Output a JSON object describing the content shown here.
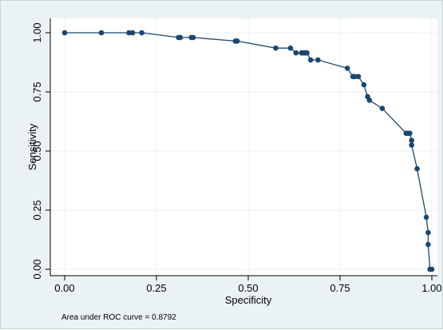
{
  "chart_data": {
    "type": "line",
    "markers": true,
    "xlabel": "Specificity",
    "ylabel": "Sensitivity",
    "xlim": [
      0,
      1
    ],
    "ylim": [
      0,
      1
    ],
    "grid": true,
    "x_ticks": [
      "0.00",
      "0.25",
      "0.50",
      "0.75",
      "1.00"
    ],
    "y_ticks": [
      "0.00",
      "0.25",
      "0.50",
      "0.75",
      "1.00"
    ],
    "annotation": "Area under ROC curve = 0.8792",
    "colors": {
      "series": "#1a476f",
      "background": "#eaf2f3",
      "plot_area": "#ffffff",
      "grid": "#eaf2f3"
    },
    "series": [
      {
        "x": [
          0.0,
          0.1,
          0.175,
          0.185,
          0.21,
          0.31,
          0.315,
          0.345,
          0.35,
          0.465,
          0.47,
          0.575,
          0.615,
          0.63,
          0.645,
          0.65,
          0.655,
          0.66,
          0.67,
          0.69,
          0.77,
          0.785,
          0.79,
          0.8,
          0.815,
          0.825,
          0.83,
          0.865,
          0.93,
          0.935,
          0.94,
          0.945,
          0.945,
          0.96,
          0.985,
          0.99,
          0.99,
          0.995,
          1.0
        ],
        "y": [
          1.0,
          1.0,
          1.0,
          1.0,
          1.0,
          0.98,
          0.98,
          0.98,
          0.98,
          0.965,
          0.965,
          0.935,
          0.935,
          0.915,
          0.915,
          0.915,
          0.915,
          0.915,
          0.885,
          0.885,
          0.85,
          0.815,
          0.815,
          0.815,
          0.78,
          0.73,
          0.715,
          0.68,
          0.575,
          0.575,
          0.575,
          0.545,
          0.525,
          0.425,
          0.22,
          0.155,
          0.105,
          0.0,
          0.0
        ]
      }
    ]
  }
}
